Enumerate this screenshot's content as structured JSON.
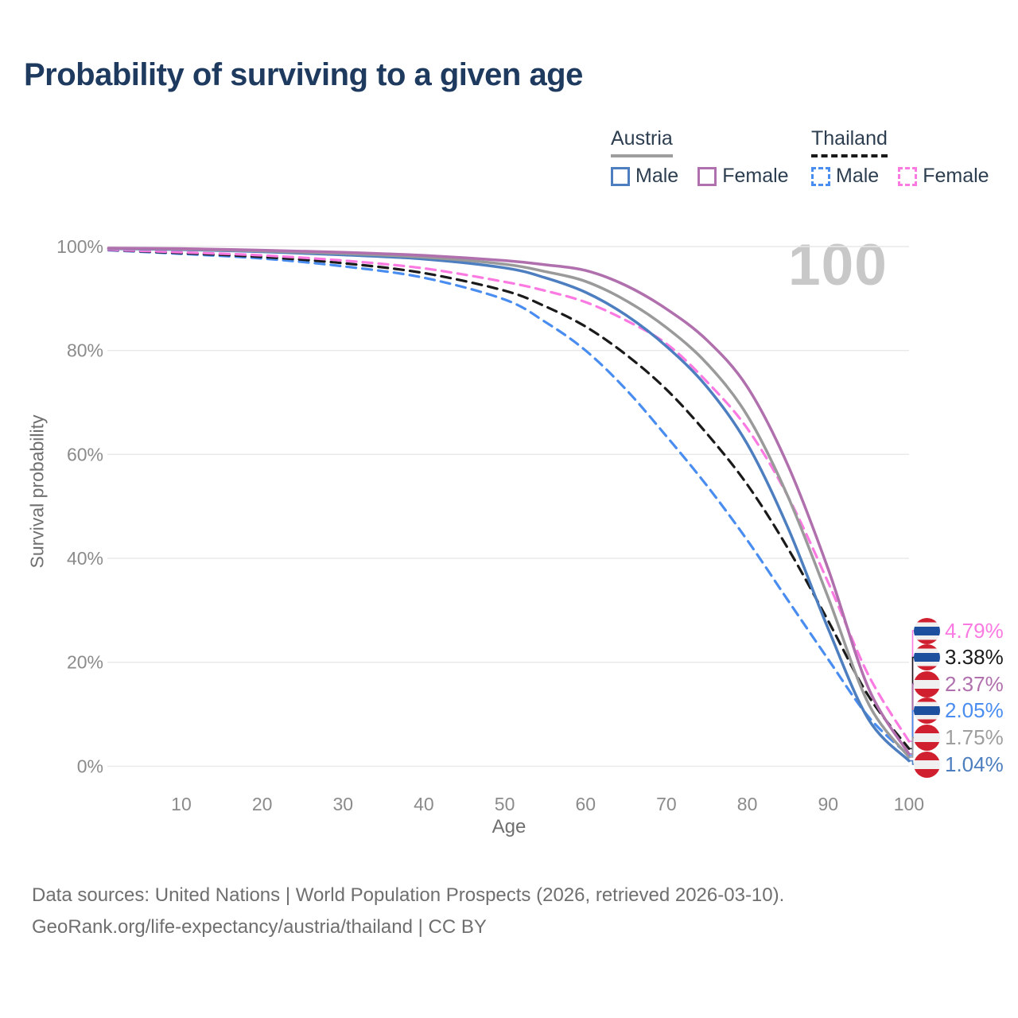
{
  "title": "Probability of surviving to a given age",
  "watermark": "100",
  "legend": {
    "groups": [
      {
        "country": "Austria",
        "line_style": "solid",
        "items": [
          {
            "label": "Male",
            "color": "#4d7ebf",
            "dashed": false
          },
          {
            "label": "Female",
            "color": "#b06fad",
            "dashed": false
          }
        ]
      },
      {
        "country": "Thailand",
        "line_style": "dashed",
        "items": [
          {
            "label": "Male",
            "color": "#4a8df0",
            "dashed": true
          },
          {
            "label": "Female",
            "color": "#fb7ae2",
            "dashed": true
          }
        ]
      }
    ]
  },
  "chart_data": {
    "type": "line",
    "title": "Probability of surviving to a given age",
    "xlabel": "Age",
    "ylabel": "Survival probability",
    "xlim": [
      1,
      100
    ],
    "ylim": [
      0,
      100
    ],
    "grid": "horizontal",
    "legend_position": "top-right",
    "x_ticks": [
      10,
      20,
      30,
      40,
      50,
      60,
      70,
      80,
      90,
      100
    ],
    "y_ticks": [
      0,
      20,
      40,
      60,
      80,
      100
    ],
    "y_tick_labels": [
      "0%",
      "20%",
      "40%",
      "60%",
      "80%",
      "100%"
    ],
    "ages": [
      1,
      10,
      20,
      30,
      40,
      50,
      55,
      60,
      65,
      70,
      75,
      80,
      85,
      90,
      95,
      100
    ],
    "unit": "percent",
    "series": [
      {
        "name": "Thailand Male",
        "country": "Thailand",
        "sex": "Male",
        "color": "#4a8df0",
        "dashed": true,
        "end_value_label": "2.05%",
        "values": [
          99.3,
          98.6,
          97.7,
          96.2,
          94.0,
          89.8,
          85.5,
          80.0,
          72.5,
          63.5,
          54.0,
          43.5,
          32.0,
          20.6,
          9.5,
          2.05
        ]
      },
      {
        "name": "Thailand Both sexes",
        "country": "Thailand",
        "sex": "Both",
        "color": "#1a1a1a",
        "dashed": true,
        "end_value_label": "3.38%",
        "values": [
          99.35,
          98.75,
          98.0,
          96.8,
          94.9,
          91.5,
          88.5,
          84.6,
          79.2,
          72.5,
          64.0,
          54.2,
          42.0,
          28.0,
          13.5,
          3.38
        ]
      },
      {
        "name": "Thailand Female",
        "country": "Thailand",
        "sex": "Female",
        "color": "#fb7ae2",
        "dashed": true,
        "end_value_label": "4.79%",
        "values": [
          99.4,
          98.9,
          98.3,
          97.3,
          95.8,
          93.2,
          91.5,
          89.3,
          85.8,
          81.3,
          74.0,
          65.0,
          52.0,
          35.4,
          17.5,
          4.79
        ]
      },
      {
        "name": "Austria Male",
        "country": "Austria",
        "sex": "Male",
        "color": "#4d7ebf",
        "dashed": false,
        "end_value_label": "1.04%",
        "values": [
          99.6,
          99.4,
          99.0,
          98.4,
          97.6,
          95.9,
          94.0,
          91.2,
          86.8,
          80.8,
          73.0,
          62.0,
          46.0,
          26.5,
          9.0,
          1.04
        ]
      },
      {
        "name": "Austria Both sexes",
        "country": "Austria",
        "sex": "Both",
        "color": "#9a9a9a",
        "dashed": false,
        "end_value_label": "1.75%",
        "values": [
          99.65,
          99.5,
          99.15,
          98.65,
          97.95,
          96.6,
          95.2,
          93.3,
          89.6,
          84.4,
          77.5,
          67.5,
          52.0,
          32.5,
          12.0,
          1.75
        ]
      },
      {
        "name": "Austria Female",
        "country": "Austria",
        "sex": "Female",
        "color": "#b06fad",
        "dashed": false,
        "end_value_label": "2.37%",
        "values": [
          99.7,
          99.6,
          99.3,
          98.9,
          98.3,
          97.3,
          96.5,
          95.4,
          92.5,
          88.0,
          82.0,
          73.0,
          58.0,
          38.0,
          15.0,
          2.37
        ]
      }
    ]
  },
  "end_labels": [
    {
      "text": "4.79%",
      "value": 4.79,
      "flag": "thailand",
      "color": "#fb7ae2",
      "series": "Thailand Female"
    },
    {
      "text": "3.38%",
      "value": 3.38,
      "flag": "thailand",
      "color": "#1a1a1a",
      "series": "Thailand Both sexes"
    },
    {
      "text": "2.37%",
      "value": 2.37,
      "flag": "austria",
      "color": "#b06fad",
      "series": "Austria Female"
    },
    {
      "text": "2.05%",
      "value": 2.05,
      "flag": "thailand",
      "color": "#4a8df0",
      "series": "Thailand Male"
    },
    {
      "text": "1.75%",
      "value": 1.75,
      "flag": "austria",
      "color": "#9e9e9e",
      "series": "Austria Both sexes"
    },
    {
      "text": "1.04%",
      "value": 1.04,
      "flag": "austria",
      "color": "#4d7ebf",
      "series": "Austria Male"
    }
  ],
  "footer": {
    "line1": "Data sources: United Nations | World Population Prospects (2026, retrieved 2026-03-10).",
    "line2": "GeoRank.org/life-expectancy/austria/thailand | CC BY"
  },
  "colors": {
    "title": "#1e3a5f",
    "axis_text": "#8b8b8b",
    "gridline": "#e8e8e8",
    "watermark": "#c8c8c8",
    "footer_text": "#6f6f6f"
  }
}
